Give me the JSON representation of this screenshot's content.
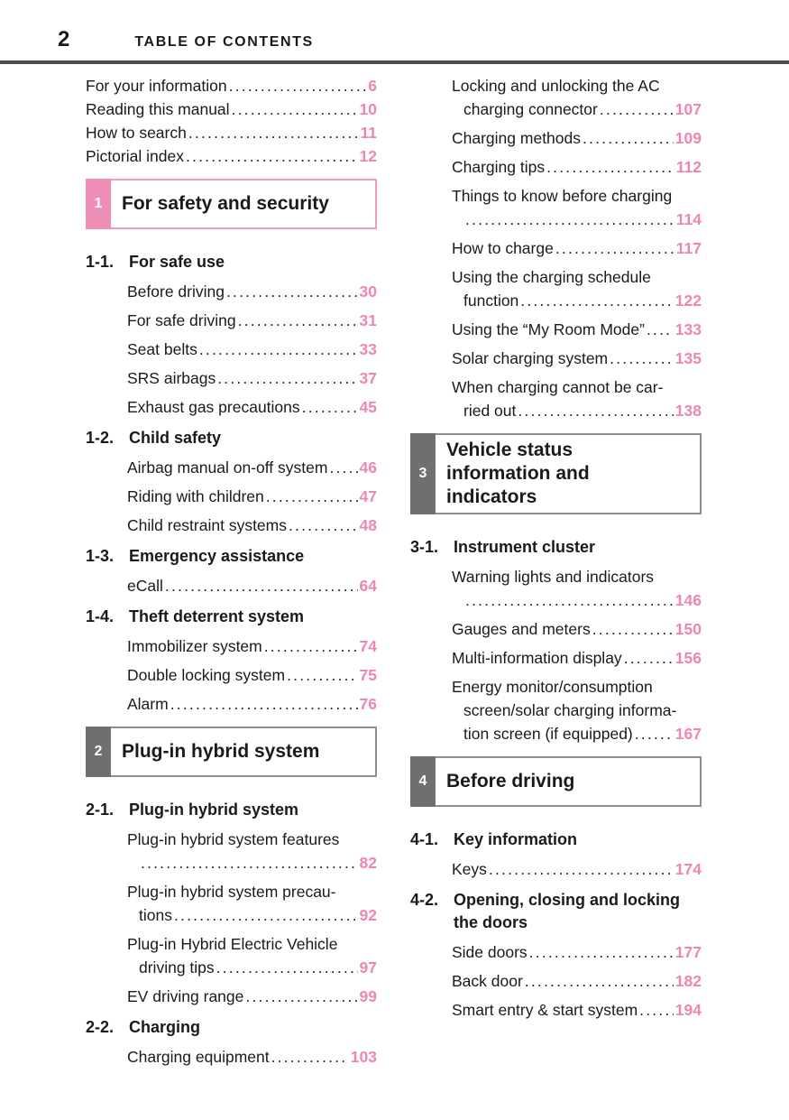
{
  "header": {
    "page_number": "2",
    "title": "TABLE OF CONTENTS"
  },
  "colors": {
    "accent_pink": "#ee85b2",
    "pink_square": "#ef8fb8",
    "pink_border": "#f09cc0",
    "gray_square": "#6f6f6f",
    "gray_border": "#8f8f8f",
    "header_rule": "#4e4e4e"
  },
  "columns": {
    "left": [
      {
        "type": "entry",
        "text": "For your information",
        "page": "6"
      },
      {
        "type": "entry",
        "text": "Reading this manual",
        "page": "10"
      },
      {
        "type": "entry",
        "text": "How to search",
        "page": "11"
      },
      {
        "type": "entry",
        "text": "Pictorial index",
        "page": "12"
      },
      {
        "type": "chapter",
        "num": "1",
        "color": "pink",
        "title": [
          "For safety and security"
        ]
      },
      {
        "type": "section",
        "num": "1-1.",
        "title": [
          "For safe use"
        ]
      },
      {
        "type": "sub",
        "text": "Before driving",
        "page": "30"
      },
      {
        "type": "sub",
        "text": "For safe driving",
        "page": "31"
      },
      {
        "type": "sub",
        "text": "Seat belts",
        "page": "33"
      },
      {
        "type": "sub",
        "text": "SRS airbags",
        "page": "37"
      },
      {
        "type": "sub",
        "text": "Exhaust gas precautions",
        "page": "45"
      },
      {
        "type": "section",
        "num": "1-2.",
        "title": [
          "Child safety"
        ]
      },
      {
        "type": "sub",
        "text": "Airbag manual on-off system",
        "page": "46"
      },
      {
        "type": "sub",
        "text": "Riding with children",
        "page": "47"
      },
      {
        "type": "sub",
        "text": "Child restraint systems",
        "page": "48"
      },
      {
        "type": "section",
        "num": "1-3.",
        "title": [
          "Emergency assistance"
        ]
      },
      {
        "type": "sub",
        "text": "eCall",
        "page": "64"
      },
      {
        "type": "section",
        "num": "1-4.",
        "title": [
          "Theft deterrent system"
        ]
      },
      {
        "type": "sub",
        "text": "Immobilizer system",
        "page": "74"
      },
      {
        "type": "sub",
        "text": "Double locking system",
        "page": "75"
      },
      {
        "type": "sub",
        "text": "Alarm",
        "page": "76"
      },
      {
        "type": "chapter",
        "num": "2",
        "color": "gray",
        "title": [
          "Plug-in hybrid system"
        ]
      },
      {
        "type": "section",
        "num": "2-1.",
        "title": [
          "Plug-in hybrid system"
        ]
      },
      {
        "type": "sub",
        "text": "Plug-in hybrid system features",
        "more": [
          ""
        ],
        "page": "82"
      },
      {
        "type": "sub",
        "text": "Plug-in hybrid system precau-",
        "more": [
          "tions"
        ],
        "page": "92"
      },
      {
        "type": "sub",
        "text": "Plug-in Hybrid Electric Vehicle",
        "more": [
          "driving tips"
        ],
        "page": "97"
      },
      {
        "type": "sub",
        "text": "EV driving range",
        "page": "99"
      },
      {
        "type": "section",
        "num": "2-2.",
        "title": [
          "Charging"
        ]
      },
      {
        "type": "sub",
        "text": "Charging equipment",
        "page": "103"
      }
    ],
    "right": [
      {
        "type": "sub",
        "text": "Locking and unlocking the AC",
        "more": [
          "charging connector"
        ],
        "page": "107"
      },
      {
        "type": "sub",
        "text": "Charging methods",
        "page": "109"
      },
      {
        "type": "sub",
        "text": "Charging tips",
        "page": "112"
      },
      {
        "type": "sub",
        "text": "Things to know before charging",
        "more": [
          ""
        ],
        "page": "114"
      },
      {
        "type": "sub",
        "text": "How to charge",
        "page": "117"
      },
      {
        "type": "sub",
        "text": "Using the charging schedule",
        "more": [
          "function"
        ],
        "page": "122"
      },
      {
        "type": "sub",
        "text": "Using the “My Room Mode”",
        "page": "133"
      },
      {
        "type": "sub",
        "text": "Solar charging system",
        "page": "135"
      },
      {
        "type": "sub",
        "text": "When charging cannot be car-",
        "more": [
          "ried out"
        ],
        "page": "138"
      },
      {
        "type": "chapter",
        "num": "3",
        "color": "gray",
        "title": [
          "Vehicle status",
          "information and",
          "indicators"
        ]
      },
      {
        "type": "section",
        "num": "3-1.",
        "title": [
          "Instrument cluster"
        ]
      },
      {
        "type": "sub",
        "text": "Warning lights and indicators",
        "more": [
          ""
        ],
        "page": "146"
      },
      {
        "type": "sub",
        "text": "Gauges and meters",
        "page": "150"
      },
      {
        "type": "sub",
        "text": "Multi-information display",
        "page": "156"
      },
      {
        "type": "sub",
        "text": "Energy monitor/consumption",
        "more": [
          "screen/solar charging informa-",
          "tion screen (if equipped)"
        ],
        "page": "167"
      },
      {
        "type": "chapter",
        "num": "4",
        "color": "gray",
        "title": [
          "Before driving"
        ]
      },
      {
        "type": "section",
        "num": "4-1.",
        "title": [
          "Key information"
        ]
      },
      {
        "type": "sub",
        "text": "Keys",
        "page": "174"
      },
      {
        "type": "section",
        "num": "4-2.",
        "title": [
          "Opening, closing and locking",
          "the doors"
        ]
      },
      {
        "type": "sub",
        "text": "Side doors",
        "page": "177"
      },
      {
        "type": "sub",
        "text": "Back door",
        "page": "182"
      },
      {
        "type": "sub",
        "text": "Smart entry & start system",
        "page": "194"
      }
    ]
  }
}
